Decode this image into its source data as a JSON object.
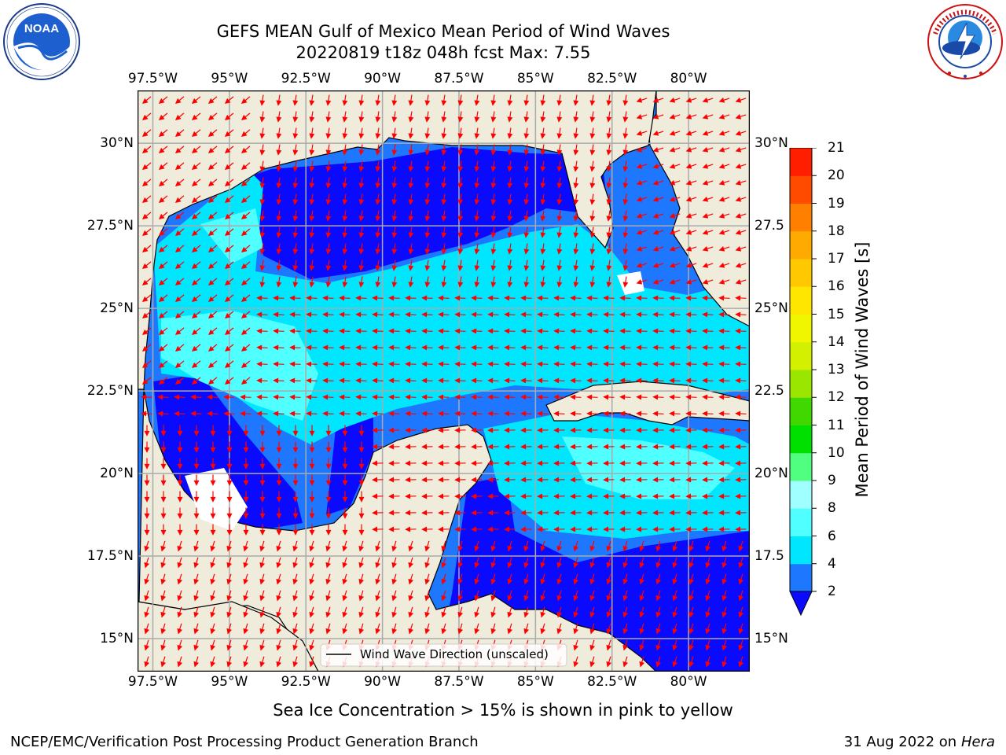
{
  "title": {
    "line1": "GEFS MEAN Gulf of Mexico Mean Period of Wind Waves",
    "line2": "20220819 t18z 048h fcst   Max: 7.55"
  },
  "logos": {
    "left": {
      "text": "NOAA",
      "ring_text": "NATIONAL OCEANIC AND ATMOSPHERIC ADMINISTRATION · U.S. DEPARTMENT OF COMMERCE"
    },
    "right": {
      "ring_text": "NATIONAL WEATHER SERVICE"
    }
  },
  "map": {
    "lon_ticks": [
      "97.5°W",
      "95°W",
      "92.5°W",
      "90°W",
      "87.5°W",
      "85°W",
      "82.5°W",
      "80°W"
    ],
    "lat_ticks_left": [
      "30°N",
      "27.5°N",
      "25°N",
      "22.5°N",
      "20°N",
      "17.5°N",
      "15°N"
    ],
    "lat_ticks_right": [
      "30°N",
      "27.5",
      "25°N",
      "22.5",
      "20°N",
      "17.5",
      "15°N"
    ],
    "lon_range": [
      -98,
      -78
    ],
    "lat_range": [
      14,
      31.6
    ],
    "legend": "Wind Wave Direction (unscaled)",
    "colors": {
      "land": "#efecdc",
      "ocean_white": "#ffffff",
      "arrow": "#ff0000"
    }
  },
  "colorbar": {
    "label": "Mean Period of Wind Waves [s]",
    "ticks": [
      "2",
      "4",
      "6",
      "8",
      "9",
      "10",
      "11",
      "12",
      "13",
      "14",
      "15",
      "16",
      "17",
      "18",
      "19",
      "20",
      "21"
    ],
    "colors": [
      "#0a0aff",
      "#1e78ff",
      "#00e6ff",
      "#50ffff",
      "#a0ffff",
      "#50ff80",
      "#00e000",
      "#40d800",
      "#9ae600",
      "#d2f000",
      "#f0f500",
      "#ffe600",
      "#ffc800",
      "#ffaa00",
      "#ff8000",
      "#ff4b00",
      "#ff1e00",
      "#ff0000"
    ]
  },
  "footer": {
    "note": "Sea Ice Concentration > 15% is shown in pink to yellow",
    "left": "NCEP/EMC/Verification Post Processing Product Generation Branch",
    "right_date": "31 Aug 2022 on",
    "right_host": "Hera"
  }
}
